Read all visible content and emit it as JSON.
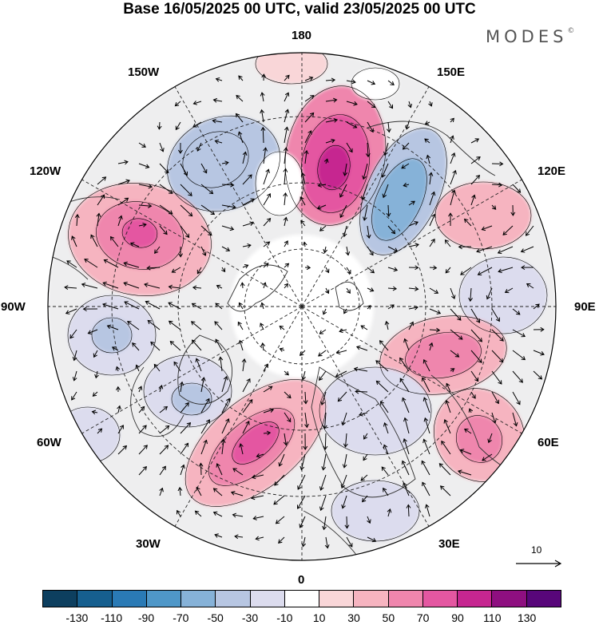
{
  "title": "Base 16/05/2025 00 UTC, valid 23/05/2025 00 UTC",
  "brand": {
    "name": "MODES",
    "mark": "©"
  },
  "longitude_labels": [
    {
      "id": "180",
      "text": "180"
    },
    {
      "id": "150e",
      "text": "150E"
    },
    {
      "id": "120e",
      "text": "120E"
    },
    {
      "id": "90e",
      "text": "90E"
    },
    {
      "id": "60e",
      "text": "60E"
    },
    {
      "id": "30e",
      "text": "30E"
    },
    {
      "id": "0",
      "text": "0"
    },
    {
      "id": "30w",
      "text": "30W"
    },
    {
      "id": "60w",
      "text": "60W"
    },
    {
      "id": "90w",
      "text": "90W"
    },
    {
      "id": "120w",
      "text": "120W"
    },
    {
      "id": "150w",
      "text": "150W"
    }
  ],
  "wind_scale": {
    "label": "10"
  },
  "colorbar": {
    "colors": [
      "#0d3f5f",
      "#165f8f",
      "#2a7ab5",
      "#4f97c8",
      "#86b2d8",
      "#b7c6e2",
      "#dcdcee",
      "#ffffff",
      "#f9d6d8",
      "#f6b4c0",
      "#ef86ad",
      "#e457a1",
      "#c62690",
      "#8e0f80",
      "#58067a"
    ],
    "ticks": [
      "-130",
      "-110",
      "-90",
      "-70",
      "-50",
      "-30",
      "-10",
      "10",
      "30",
      "50",
      "70",
      "90",
      "110",
      "130"
    ]
  },
  "anomaly_centers": [
    {
      "sign": "negative",
      "lon": "150W",
      "strength": "-50"
    },
    {
      "sign": "positive",
      "lon": "180",
      "strength": "90"
    },
    {
      "sign": "negative",
      "lon": "150E",
      "strength": "-70"
    },
    {
      "sign": "positive",
      "lon": "120E",
      "strength": "30"
    },
    {
      "sign": "negative",
      "lon": "90E",
      "strength": "-30"
    },
    {
      "sign": "positive",
      "lon": "75E",
      "strength": "50"
    },
    {
      "sign": "positive",
      "lon": "50E",
      "strength": "30"
    },
    {
      "sign": "negative",
      "lon": "20E",
      "strength": "-30"
    },
    {
      "sign": "positive",
      "lon": "30W",
      "strength": "70"
    },
    {
      "sign": "negative",
      "lon": "60W",
      "strength": "-50"
    },
    {
      "sign": "negative",
      "lon": "90W",
      "strength": "-50"
    },
    {
      "sign": "positive",
      "lon": "120W",
      "strength": "70"
    }
  ]
}
